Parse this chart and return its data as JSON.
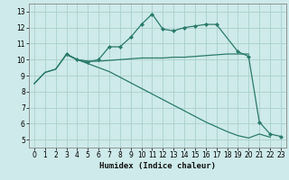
{
  "xlabel": "Humidex (Indice chaleur)",
  "xlim": [
    -0.5,
    23.5
  ],
  "ylim": [
    4.5,
    13.5
  ],
  "yticks": [
    5,
    6,
    7,
    8,
    9,
    10,
    11,
    12,
    13
  ],
  "xticks": [
    0,
    1,
    2,
    3,
    4,
    5,
    6,
    7,
    8,
    9,
    10,
    11,
    12,
    13,
    14,
    15,
    16,
    17,
    18,
    19,
    20,
    21,
    22,
    23
  ],
  "line_color": "#2a7a6a",
  "bg_color": "#ceeaea",
  "grid_color": "#aad0cc",
  "series": [
    {
      "x": [
        0,
        1,
        2,
        3,
        4,
        5,
        6,
        7,
        8,
        9,
        10,
        11,
        12,
        13,
        14,
        15,
        16,
        17,
        18,
        19,
        20,
        21,
        22
      ],
      "y": [
        8.5,
        9.2,
        9.4,
        10.35,
        10.0,
        9.75,
        9.5,
        9.25,
        8.9,
        8.55,
        8.2,
        7.85,
        7.5,
        7.15,
        6.8,
        6.45,
        6.1,
        5.8,
        5.5,
        5.25,
        5.1,
        5.35,
        5.15
      ],
      "markers": false
    },
    {
      "x": [
        0,
        1,
        2,
        3,
        4,
        5,
        6,
        7,
        8,
        9,
        10,
        11,
        12,
        13,
        14,
        15,
        16,
        17,
        18,
        19,
        20
      ],
      "y": [
        8.5,
        9.2,
        9.4,
        10.3,
        10.0,
        9.9,
        9.9,
        9.95,
        10.0,
        10.05,
        10.1,
        10.1,
        10.1,
        10.15,
        10.15,
        10.2,
        10.25,
        10.3,
        10.35,
        10.35,
        10.35
      ],
      "markers": false
    },
    {
      "x": [
        3,
        4,
        5,
        6,
        7,
        8,
        9,
        10,
        11,
        12,
        13,
        14,
        15,
        16,
        17,
        19,
        20,
        21,
        22,
        23
      ],
      "y": [
        10.35,
        10.0,
        9.85,
        10.0,
        10.8,
        10.8,
        11.4,
        12.2,
        12.85,
        11.9,
        11.8,
        12.0,
        12.1,
        12.2,
        12.2,
        10.5,
        10.2,
        6.1,
        5.35,
        5.2
      ],
      "markers": true
    }
  ]
}
